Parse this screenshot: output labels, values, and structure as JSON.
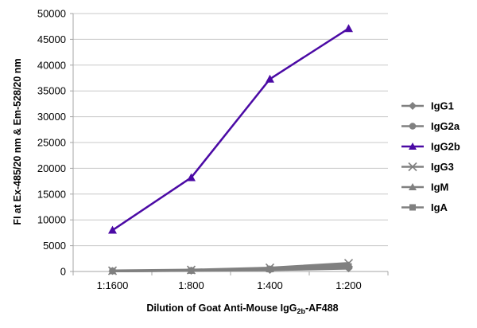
{
  "chart_data": {
    "type": "line",
    "title": "",
    "xlabel_main": "Dilution of Goat Anti-Mouse IgG",
    "xlabel_sub": "2b",
    "xlabel_tail": "-AF488",
    "ylabel": "FI at Ex-485/20 nm & Em-528/20 nm",
    "categories": [
      "1:1600",
      "1:800",
      "1:400",
      "1:200"
    ],
    "ylim": [
      0,
      50000
    ],
    "yticks": [
      0,
      5000,
      10000,
      15000,
      20000,
      25000,
      30000,
      35000,
      40000,
      45000,
      50000
    ],
    "grid": true,
    "legend_position": "right",
    "series": [
      {
        "name": "IgG1",
        "values": [
          100,
          150,
          300,
          600
        ],
        "color": "#808080",
        "marker": "diamond"
      },
      {
        "name": "IgG2a",
        "values": [
          100,
          200,
          400,
          900
        ],
        "color": "#808080",
        "marker": "circle"
      },
      {
        "name": "IgG2b",
        "values": [
          8000,
          18200,
          37300,
          47100
        ],
        "color": "#4B0AA5",
        "marker": "triangle"
      },
      {
        "name": "IgG3",
        "values": [
          150,
          300,
          700,
          1600
        ],
        "color": "#808080",
        "marker": "x"
      },
      {
        "name": "IgM",
        "values": [
          100,
          200,
          500,
          1200
        ],
        "color": "#808080",
        "marker": "triangle"
      },
      {
        "name": "IgA",
        "values": [
          100,
          180,
          450,
          1000
        ],
        "color": "#808080",
        "marker": "square"
      }
    ]
  }
}
